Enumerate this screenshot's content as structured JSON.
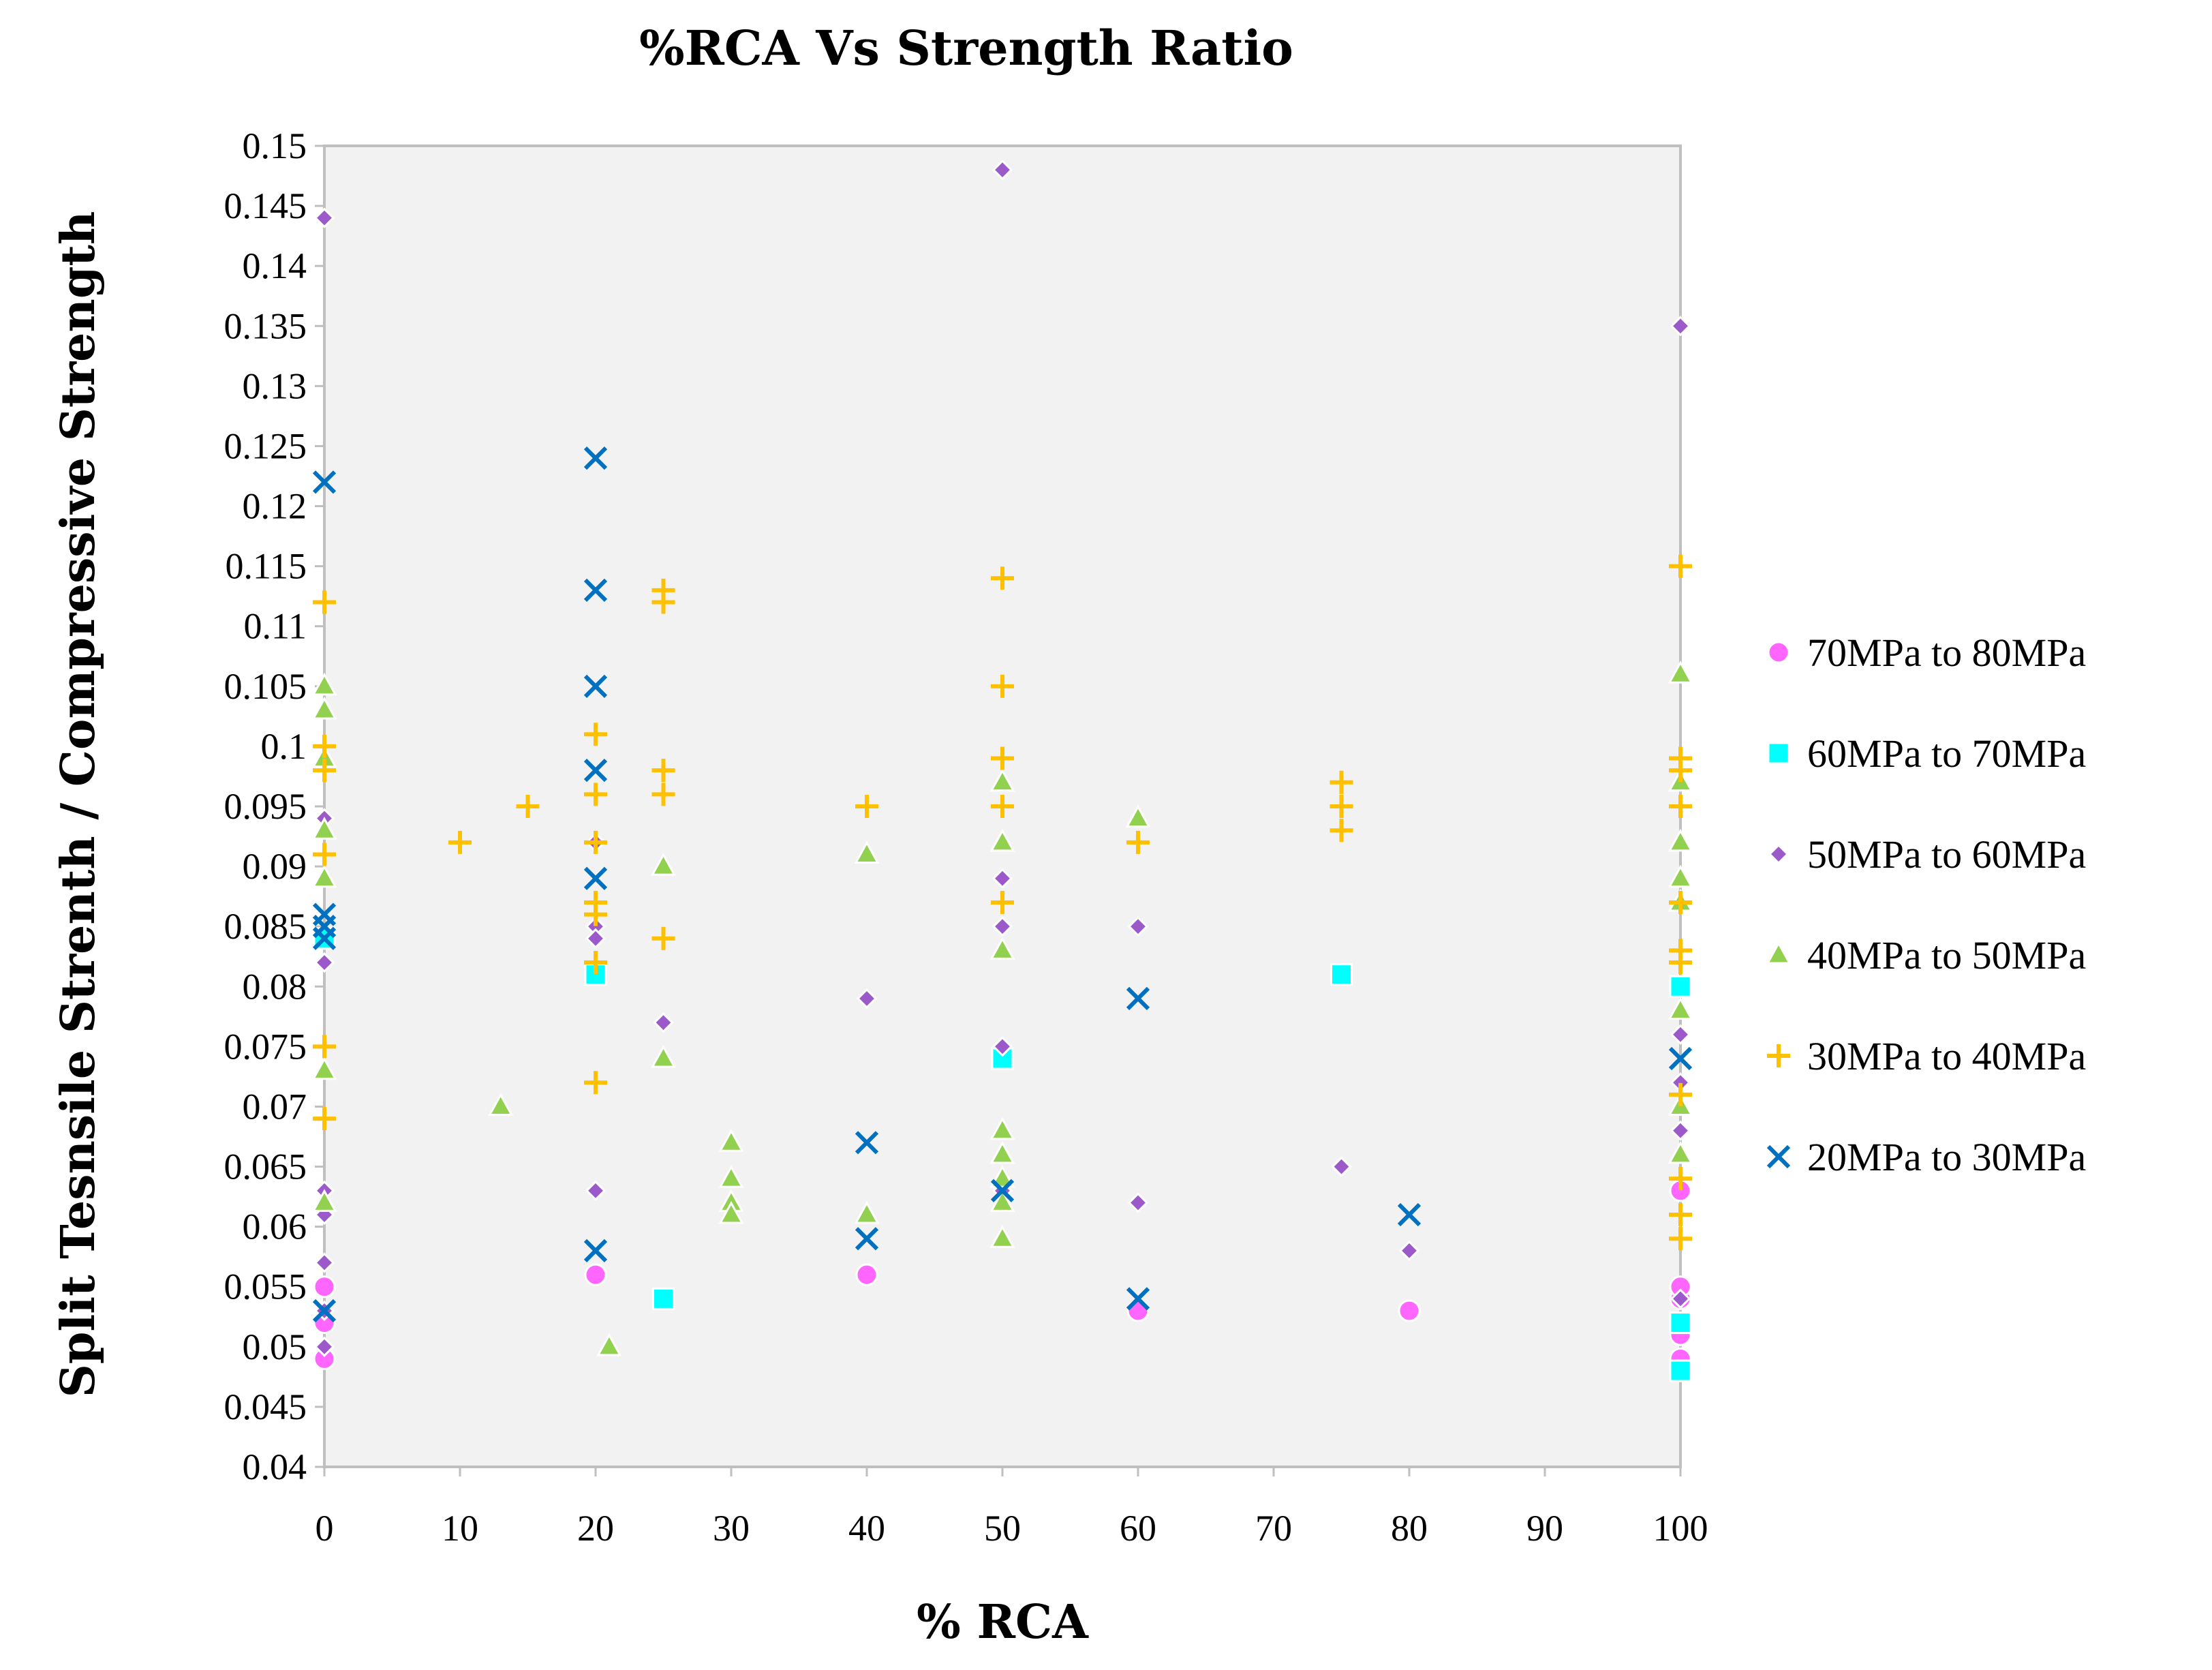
{
  "chart_data": {
    "type": "scatter",
    "title": "%RCA Vs Strength Ratio",
    "xlabel": "% RCA",
    "ylabel": "Split Tesnsile Strenth / Compressive Strength",
    "xlim": [
      0,
      100
    ],
    "ylim": [
      0.04,
      0.15
    ],
    "xticks": [
      "0",
      "10",
      "20",
      "30",
      "40",
      "50",
      "60",
      "70",
      "80",
      "90",
      "100"
    ],
    "yticks": [
      "0.04",
      "0.045",
      "0.05",
      "0.055",
      "0.06",
      "0.065",
      "0.07",
      "0.075",
      "0.08",
      "0.085",
      "0.09",
      "0.095",
      "0.1",
      "0.105",
      "0.11",
      "0.115",
      "0.12",
      "0.125",
      "0.13",
      "0.135",
      "0.14",
      "0.145",
      "0.15"
    ],
    "legend_position": "right",
    "series": [
      {
        "name": "70MPa to 80MPa",
        "marker": "circle",
        "color": "#FF66FF",
        "points": [
          [
            0,
            0.049
          ],
          [
            0,
            0.052
          ],
          [
            0,
            0.055
          ],
          [
            20,
            0.056
          ],
          [
            40,
            0.056
          ],
          [
            60,
            0.053
          ],
          [
            80,
            0.053
          ],
          [
            100,
            0.049
          ],
          [
            100,
            0.051
          ],
          [
            100,
            0.054
          ],
          [
            100,
            0.055
          ],
          [
            100,
            0.063
          ]
        ]
      },
      {
        "name": "60MPa to 70MPa",
        "marker": "square",
        "color": "#00FFFF",
        "points": [
          [
            0,
            0.084
          ],
          [
            20,
            0.081
          ],
          [
            25,
            0.054
          ],
          [
            50,
            0.074
          ],
          [
            75,
            0.081
          ],
          [
            100,
            0.048
          ],
          [
            100,
            0.052
          ],
          [
            100,
            0.08
          ]
        ]
      },
      {
        "name": "50MPa to 60MPa",
        "marker": "diamond",
        "color": "#9B59C9",
        "points": [
          [
            0,
            0.144
          ],
          [
            0,
            0.094
          ],
          [
            0,
            0.082
          ],
          [
            0,
            0.063
          ],
          [
            0,
            0.061
          ],
          [
            0,
            0.057
          ],
          [
            0,
            0.053
          ],
          [
            0,
            0.05
          ],
          [
            20,
            0.092
          ],
          [
            20,
            0.085
          ],
          [
            20,
            0.084
          ],
          [
            20,
            0.063
          ],
          [
            25,
            0.077
          ],
          [
            40,
            0.079
          ],
          [
            50,
            0.148
          ],
          [
            50,
            0.089
          ],
          [
            50,
            0.085
          ],
          [
            50,
            0.075
          ],
          [
            50,
            0.063
          ],
          [
            60,
            0.085
          ],
          [
            60,
            0.062
          ],
          [
            75,
            0.065
          ],
          [
            80,
            0.058
          ],
          [
            100,
            0.135
          ],
          [
            100,
            0.076
          ],
          [
            100,
            0.072
          ],
          [
            100,
            0.068
          ],
          [
            100,
            0.054
          ]
        ]
      },
      {
        "name": "40MPa to 50MPa",
        "marker": "triangle",
        "color": "#92D050",
        "points": [
          [
            0,
            0.105
          ],
          [
            0,
            0.103
          ],
          [
            0,
            0.099
          ],
          [
            0,
            0.093
          ],
          [
            0,
            0.089
          ],
          [
            0,
            0.073
          ],
          [
            0,
            0.062
          ],
          [
            13,
            0.07
          ],
          [
            21,
            0.05
          ],
          [
            25,
            0.09
          ],
          [
            25,
            0.074
          ],
          [
            30,
            0.067
          ],
          [
            30,
            0.064
          ],
          [
            30,
            0.062
          ],
          [
            30,
            0.061
          ],
          [
            40,
            0.091
          ],
          [
            40,
            0.061
          ],
          [
            50,
            0.097
          ],
          [
            50,
            0.092
          ],
          [
            50,
            0.083
          ],
          [
            50,
            0.068
          ],
          [
            50,
            0.066
          ],
          [
            50,
            0.064
          ],
          [
            50,
            0.062
          ],
          [
            50,
            0.059
          ],
          [
            60,
            0.094
          ],
          [
            100,
            0.106
          ],
          [
            100,
            0.097
          ],
          [
            100,
            0.092
          ],
          [
            100,
            0.089
          ],
          [
            100,
            0.087
          ],
          [
            100,
            0.078
          ],
          [
            100,
            0.07
          ],
          [
            100,
            0.066
          ]
        ]
      },
      {
        "name": "30MPa to 40MPa",
        "marker": "plus",
        "color": "#FFC000",
        "points": [
          [
            0,
            0.112
          ],
          [
            0,
            0.1
          ],
          [
            0,
            0.098
          ],
          [
            0,
            0.091
          ],
          [
            0,
            0.075
          ],
          [
            0,
            0.069
          ],
          [
            10,
            0.092
          ],
          [
            15,
            0.095
          ],
          [
            20,
            0.101
          ],
          [
            20,
            0.096
          ],
          [
            20,
            0.092
          ],
          [
            20,
            0.087
          ],
          [
            20,
            0.086
          ],
          [
            20,
            0.082
          ],
          [
            20,
            0.072
          ],
          [
            25,
            0.113
          ],
          [
            25,
            0.112
          ],
          [
            25,
            0.098
          ],
          [
            25,
            0.096
          ],
          [
            25,
            0.084
          ],
          [
            40,
            0.095
          ],
          [
            50,
            0.114
          ],
          [
            50,
            0.105
          ],
          [
            50,
            0.099
          ],
          [
            50,
            0.095
          ],
          [
            50,
            0.087
          ],
          [
            60,
            0.092
          ],
          [
            75,
            0.097
          ],
          [
            75,
            0.095
          ],
          [
            75,
            0.093
          ],
          [
            100,
            0.115
          ],
          [
            100,
            0.099
          ],
          [
            100,
            0.098
          ],
          [
            100,
            0.095
          ],
          [
            100,
            0.087
          ],
          [
            100,
            0.083
          ],
          [
            100,
            0.082
          ],
          [
            100,
            0.071
          ],
          [
            100,
            0.064
          ],
          [
            100,
            0.061
          ],
          [
            100,
            0.059
          ]
        ]
      },
      {
        "name": "20MPa to 30MPa",
        "marker": "x",
        "color": "#0070C0",
        "points": [
          [
            0,
            0.122
          ],
          [
            0,
            0.086
          ],
          [
            0,
            0.085
          ],
          [
            0,
            0.084
          ],
          [
            0,
            0.053
          ],
          [
            20,
            0.124
          ],
          [
            20,
            0.113
          ],
          [
            20,
            0.105
          ],
          [
            20,
            0.098
          ],
          [
            20,
            0.089
          ],
          [
            20,
            0.058
          ],
          [
            40,
            0.067
          ],
          [
            40,
            0.059
          ],
          [
            50,
            0.063
          ],
          [
            60,
            0.079
          ],
          [
            60,
            0.054
          ],
          [
            80,
            0.061
          ],
          [
            100,
            0.074
          ]
        ]
      }
    ]
  }
}
